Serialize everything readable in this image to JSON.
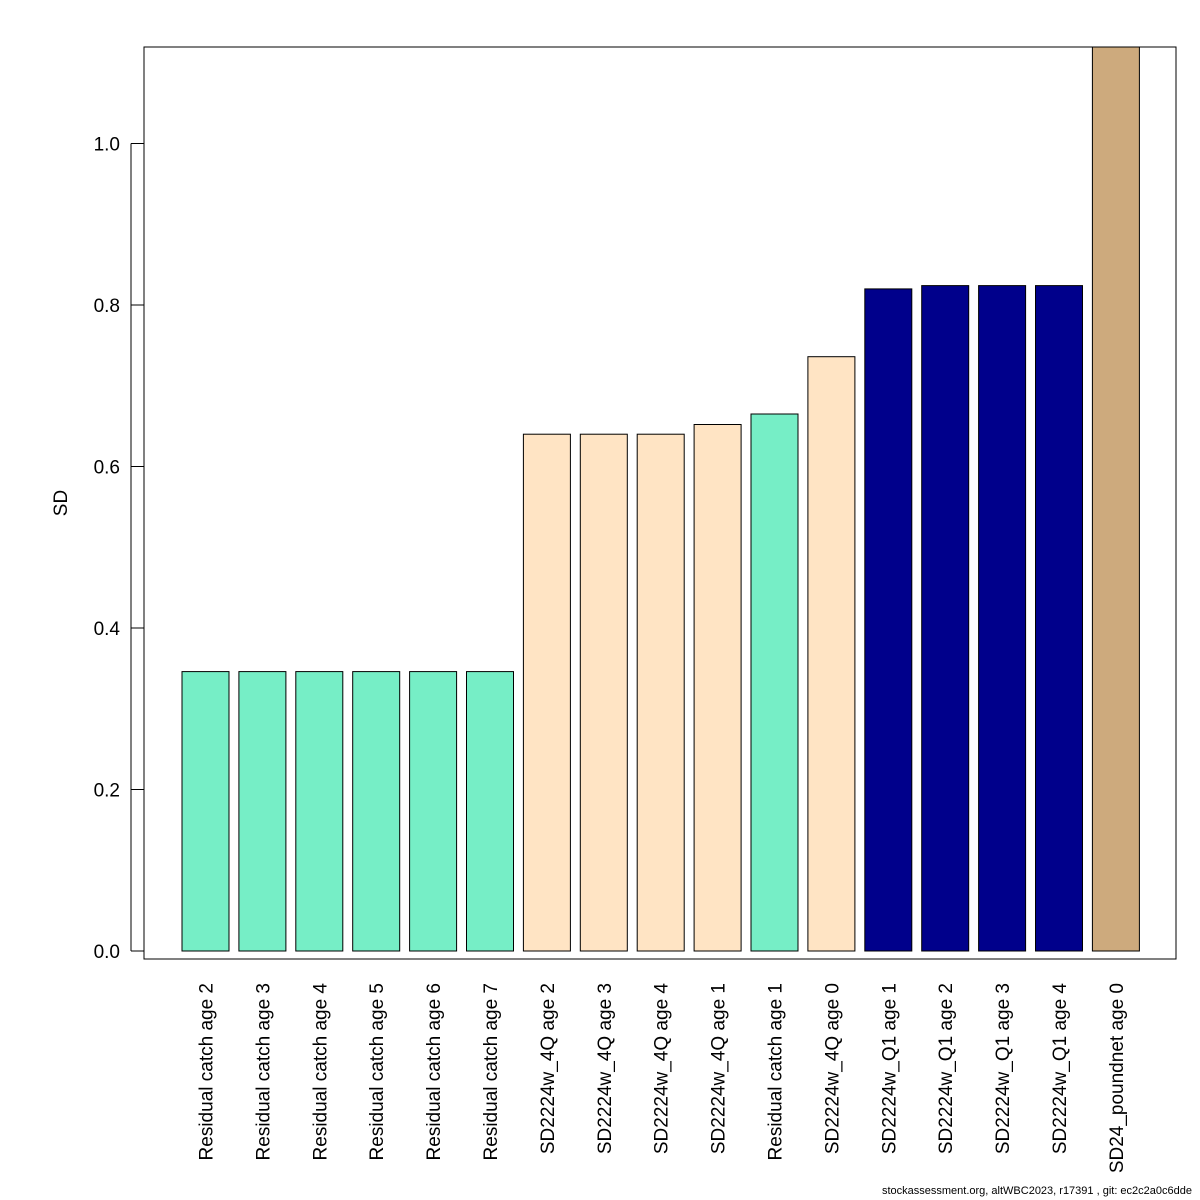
{
  "chart_data": {
    "type": "bar",
    "ylabel": "SD",
    "xlabel": "",
    "ylim": [
      0,
      1.12
    ],
    "yticks": [
      0.0,
      0.2,
      0.4,
      0.6,
      0.8,
      1.0
    ],
    "ytick_labels": [
      "0.0",
      "0.2",
      "0.4",
      "0.6",
      "0.8",
      "1.0"
    ],
    "grid": false,
    "categories": [
      "Residual catch age 2",
      "Residual catch age 3",
      "Residual catch age 4",
      "Residual catch age 5",
      "Residual catch age 6",
      "Residual catch age 7",
      "SD2224w_4Q age 2",
      "SD2224w_4Q age 3",
      "SD2224w_4Q age 4",
      "SD2224w_4Q age 1",
      "Residual catch age 1",
      "SD2224w_4Q age 0",
      "SD2224w_Q1 age 1",
      "SD2224w_Q1 age 2",
      "SD2224w_Q1 age 3",
      "SD2224w_Q1 age 4",
      "SD24_poundnet age 0"
    ],
    "values": [
      0.346,
      0.346,
      0.346,
      0.346,
      0.346,
      0.346,
      0.64,
      0.64,
      0.64,
      0.652,
      0.665,
      0.736,
      0.82,
      0.824,
      0.824,
      0.824,
      1.2
    ],
    "colors": [
      "#76eec6",
      "#76eec6",
      "#76eec6",
      "#76eec6",
      "#76eec6",
      "#76eec6",
      "#ffe4c4",
      "#ffe4c4",
      "#ffe4c4",
      "#ffe4c4",
      "#76eec6",
      "#ffe4c4",
      "#00008b",
      "#00008b",
      "#00008b",
      "#00008b",
      "#cdaa7d"
    ]
  },
  "footer": {
    "text": "stockassessment.org, altWBC2023, r17391 , git: ec2c2a0c6dde"
  }
}
